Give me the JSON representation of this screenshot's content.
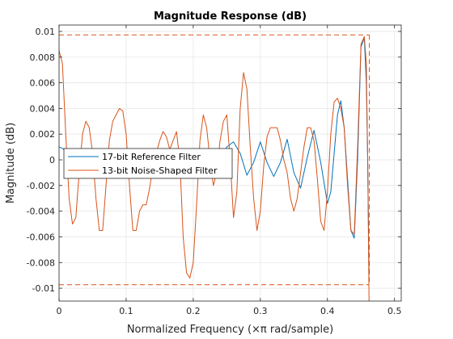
{
  "chart_data": {
    "type": "line",
    "title": "Magnitude Response (dB)",
    "xlabel": "Normalized Frequency (×π rad/sample)",
    "ylabel": "Magnitude (dB)",
    "xlim": [
      0,
      0.51
    ],
    "ylim": [
      -0.011,
      0.0105
    ],
    "xticks": [
      0,
      0.1,
      0.2,
      0.3,
      0.4,
      0.5
    ],
    "xtick_labels": [
      "0",
      "0.1",
      "0.2",
      "0.3",
      "0.4",
      "0.5"
    ],
    "yticks": [
      -0.01,
      -0.008,
      -0.006,
      -0.004,
      -0.002,
      0,
      0.002,
      0.004,
      0.006,
      0.008,
      0.01
    ],
    "ytick_labels": [
      "-0.01",
      "-0.008",
      "-0.006",
      "-0.004",
      "-0.002",
      "0",
      "0.002",
      "0.004",
      "0.006",
      "0.008",
      "0.01"
    ],
    "grid": true,
    "legend_position": "middle-left",
    "spec_mask": {
      "upper": 0.00973,
      "lower": -0.00973,
      "x_end": 0.4625,
      "color": "#D95319"
    },
    "series": [
      {
        "name": "17-bit Reference Filter",
        "color": "#0072BD",
        "x": [
          0,
          0.005,
          0.01,
          0.02,
          0.03,
          0.04,
          0.05,
          0.06,
          0.07,
          0.08,
          0.09,
          0.1,
          0.11,
          0.12,
          0.13,
          0.14,
          0.15,
          0.16,
          0.17,
          0.18,
          0.19,
          0.2,
          0.21,
          0.22,
          0.23,
          0.24,
          0.25,
          0.26,
          0.27,
          0.28,
          0.29,
          0.3,
          0.31,
          0.32,
          0.33,
          0.34,
          0.35,
          0.36,
          0.37,
          0.38,
          0.39,
          0.4,
          0.405,
          0.41,
          0.415,
          0.42,
          0.425,
          0.43,
          0.435,
          0.44,
          0.445,
          0.45,
          0.455,
          0.458,
          0.46,
          0.462
        ],
        "y": [
          0.001,
          0.0009,
          0.0007,
          0.0003,
          0.0001,
          0.0001,
          0.0001,
          0.0,
          0.0,
          0.0,
          0.0,
          0.0,
          0.0,
          0.0,
          0.0,
          0.0,
          0.0,
          0.0,
          0.0,
          0.0,
          0.0,
          0.0,
          0.0,
          0.0001,
          0.0002,
          0.0001,
          0.001,
          0.0014,
          0.0005,
          -0.0012,
          -0.0002,
          0.0014,
          -0.0002,
          -0.0013,
          -0.0002,
          0.0016,
          -0.001,
          -0.0022,
          0.0002,
          0.0023,
          -0.0002,
          -0.0034,
          -0.0025,
          0.0005,
          0.0035,
          0.0046,
          0.0025,
          -0.0015,
          -0.0055,
          -0.0061,
          0.0,
          0.0088,
          0.0095,
          0.006,
          0.0,
          -0.009
        ]
      },
      {
        "name": "13-bit Noise-Shaped Filter",
        "color": "#D95319",
        "x": [
          0,
          0.005,
          0.01,
          0.015,
          0.02,
          0.025,
          0.03,
          0.035,
          0.04,
          0.045,
          0.05,
          0.055,
          0.06,
          0.065,
          0.07,
          0.075,
          0.08,
          0.085,
          0.09,
          0.095,
          0.1,
          0.105,
          0.11,
          0.115,
          0.12,
          0.125,
          0.13,
          0.135,
          0.14,
          0.145,
          0.15,
          0.155,
          0.16,
          0.165,
          0.17,
          0.175,
          0.18,
          0.185,
          0.19,
          0.195,
          0.2,
          0.205,
          0.21,
          0.215,
          0.22,
          0.225,
          0.23,
          0.235,
          0.24,
          0.245,
          0.25,
          0.255,
          0.26,
          0.265,
          0.27,
          0.275,
          0.28,
          0.285,
          0.29,
          0.295,
          0.3,
          0.305,
          0.31,
          0.315,
          0.32,
          0.325,
          0.33,
          0.335,
          0.34,
          0.345,
          0.35,
          0.355,
          0.36,
          0.365,
          0.37,
          0.375,
          0.38,
          0.385,
          0.39,
          0.395,
          0.4,
          0.405,
          0.41,
          0.415,
          0.42,
          0.425,
          0.43,
          0.435,
          0.44,
          0.445,
          0.45,
          0.455,
          0.458,
          0.46,
          0.462
        ],
        "y": [
          0.0085,
          0.0075,
          0.002,
          -0.003,
          -0.005,
          -0.0045,
          -0.001,
          0.002,
          0.003,
          0.0025,
          0.0005,
          -0.003,
          -0.0055,
          -0.0055,
          -0.002,
          0.0015,
          0.003,
          0.0035,
          0.004,
          0.0038,
          0.002,
          -0.002,
          -0.0055,
          -0.0055,
          -0.004,
          -0.0035,
          -0.0035,
          -0.0022,
          -0.0005,
          0.0005,
          0.0015,
          0.0022,
          0.0018,
          0.0008,
          0.0015,
          0.0022,
          0.0,
          -0.006,
          -0.0088,
          -0.0092,
          -0.008,
          -0.0035,
          0.0015,
          0.0035,
          0.0025,
          0.0,
          -0.002,
          -0.001,
          0.0015,
          0.003,
          0.0035,
          0.0,
          -0.0045,
          -0.0025,
          0.004,
          0.0068,
          0.0055,
          0.001,
          -0.003,
          -0.0055,
          -0.004,
          -0.0005,
          0.0018,
          0.0025,
          0.0025,
          0.0025,
          0.0015,
          0.0,
          -0.001,
          -0.003,
          -0.004,
          -0.003,
          -0.001,
          0.001,
          0.0025,
          0.0025,
          0.0015,
          -0.0015,
          -0.0048,
          -0.0055,
          -0.0025,
          0.002,
          0.0045,
          0.0048,
          0.004,
          0.0025,
          -0.002,
          -0.0055,
          -0.0058,
          0.001,
          0.009,
          0.0096,
          0.0075,
          0.0,
          -0.011
        ]
      }
    ]
  }
}
